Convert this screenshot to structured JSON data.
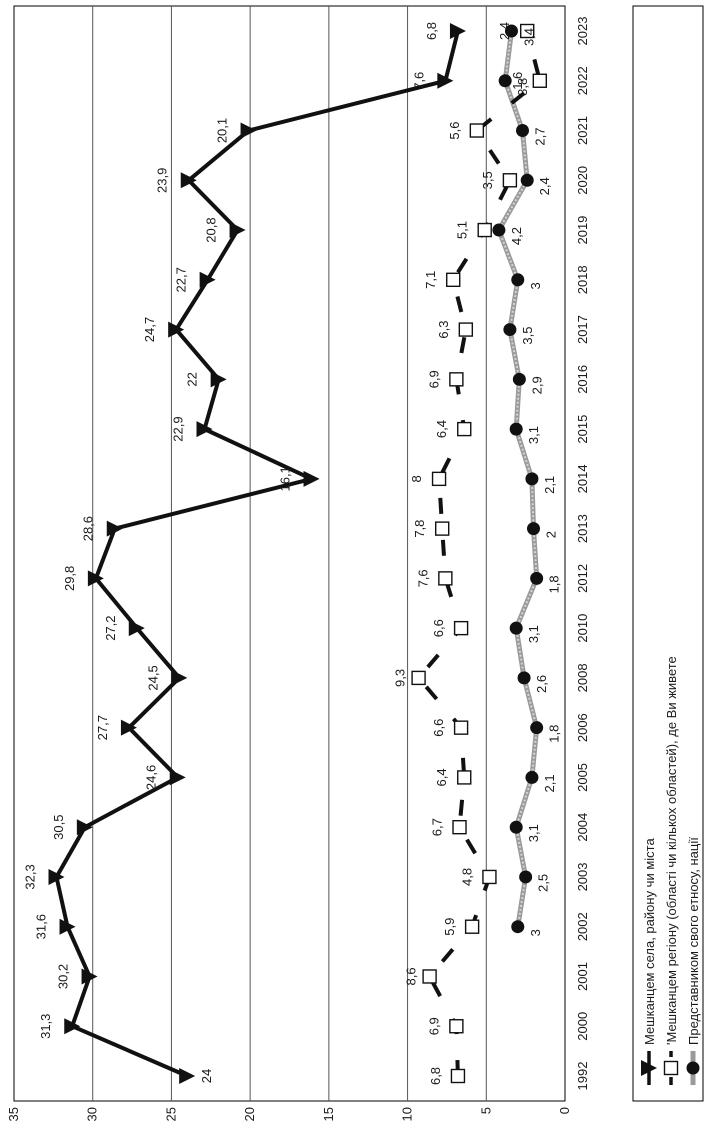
{
  "chart_data": {
    "type": "line",
    "orientation": "rotated-90-clockwise",
    "categories": [
      "1992",
      "2000",
      "2001",
      "2002",
      "2003",
      "2004",
      "2005",
      "2006",
      "2008",
      "2010",
      "2012",
      "2013",
      "2014",
      "2015",
      "2016",
      "2017",
      "2018",
      "2019",
      "2020",
      "2021",
      "2022",
      "2023"
    ],
    "ylim": [
      0,
      35
    ],
    "yticks": [
      0,
      5,
      10,
      15,
      20,
      25,
      30,
      35
    ],
    "grid": true,
    "legend_position": "right",
    "series": [
      {
        "name": "Мешканцем села, району чи міста",
        "marker": "triangle",
        "line_style": "solid",
        "color": "#222222",
        "values": [
          24,
          31.3,
          30.2,
          31.6,
          32.3,
          30.5,
          24.6,
          27.7,
          24.5,
          27.2,
          29.8,
          28.6,
          16.1,
          22.9,
          22,
          24.7,
          22.7,
          20.8,
          23.9,
          20.1,
          7.6,
          6.8
        ],
        "labels": [
          "24",
          "31,3",
          "30,2",
          "31,6",
          "32,3",
          "30,5",
          "24,6",
          "27,7",
          "24,5",
          "27,2",
          "29,8",
          "28,6",
          "16,1",
          "22,9",
          "22",
          "24,7",
          "22,7",
          "20,8",
          "23,9",
          "20,1",
          "7,6",
          "6,8"
        ]
      },
      {
        "name": "'Мешканцем регіону (області чи кількох областей), де Ви живете",
        "marker": "square",
        "line_style": "dashed",
        "color": "#222222",
        "values": [
          6.8,
          6.9,
          8.6,
          5.9,
          4.8,
          6.7,
          6.4,
          6.6,
          9.3,
          6.6,
          7.6,
          7.8,
          8,
          6.4,
          6.9,
          6.3,
          7.1,
          5.1,
          3.5,
          5.6,
          1.6,
          2.4
        ],
        "labels": [
          "6,8",
          "6,9",
          "8,6",
          "5,9",
          "4,8",
          "6,7",
          "6,4",
          "6,6",
          "9,3",
          "6,6",
          "7,6",
          "7,8",
          "8",
          "6,4",
          "6,9",
          "6,3",
          "7,1",
          "5,1",
          "3,5",
          "5,6",
          "1,6",
          "2,4"
        ]
      },
      {
        "name": "Представником свого етносу, нації",
        "marker": "circle",
        "line_style": "grey-band",
        "color": "#999999",
        "values": [
          null,
          null,
          null,
          3,
          2.5,
          3.1,
          2.1,
          1.8,
          2.6,
          3.1,
          1.8,
          2,
          2.1,
          3.1,
          2.9,
          3.5,
          3,
          4.2,
          2.4,
          2.7,
          3.8,
          3.4
        ],
        "labels": [
          "",
          "",
          "",
          "3",
          "2,5",
          "3,1",
          "2,1",
          "1,8",
          "2,6",
          "3,1",
          "1,8",
          "2",
          "2,1",
          "3,1",
          "2,9",
          "3,5",
          "3",
          "4,2",
          "2,4",
          "2,7",
          "3,8",
          "3,4"
        ]
      }
    ]
  }
}
